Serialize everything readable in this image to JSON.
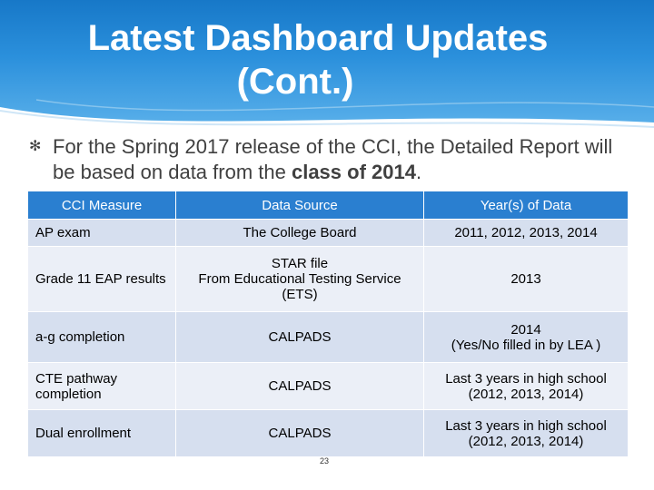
{
  "title": {
    "line1": "Latest Dashboard Updates",
    "line2": "(Cont.)"
  },
  "bullet": {
    "text_before": "For the Spring 2017 release of the CCI, the Detailed Report will be based on data from the ",
    "text_bold": "class of 2014",
    "text_after": "."
  },
  "table": {
    "headers": [
      "CCI Measure",
      "Data Source",
      "Year(s) of Data"
    ],
    "rows": [
      {
        "measure": "AP exam",
        "source": "The College Board",
        "years": "2011, 2012, 2013, 2014"
      },
      {
        "measure": "Grade 11 EAP results",
        "source": "STAR file\nFrom Educational Testing Service (ETS)",
        "years": "2013"
      },
      {
        "measure": "a-g completion",
        "source": "CALPADS",
        "years": "2014\n(Yes/No filled in by LEA )"
      },
      {
        "measure": "CTE pathway completion",
        "source": "CALPADS",
        "years": "Last 3 years in high school (2012, 2013, 2014)"
      },
      {
        "measure": "Dual enrollment",
        "source": "CALPADS",
        "years": "Last 3 years in high school (2012, 2013, 2014)"
      }
    ]
  },
  "page_number": "23"
}
